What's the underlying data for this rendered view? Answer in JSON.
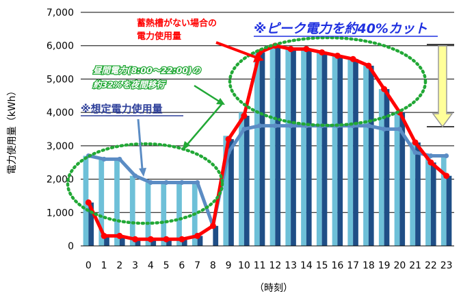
{
  "chart_data": {
    "type": "bar",
    "title": "",
    "xlabel": "（時刻）",
    "ylabel": "電力使用量（kWh）",
    "ylim": [
      0,
      7000
    ],
    "yticks": [
      0,
      1000,
      2000,
      3000,
      4000,
      5000,
      6000,
      7000
    ],
    "ytick_labels": [
      "0",
      "1,000",
      "2,000",
      "3,000",
      "4,000",
      "5,000",
      "6,000",
      "7,000"
    ],
    "categories": [
      "0",
      "1",
      "2",
      "3",
      "4",
      "5",
      "6",
      "7",
      "8",
      "9",
      "10",
      "11",
      "12",
      "13",
      "14",
      "15",
      "16",
      "17",
      "18",
      "19",
      "20",
      "21",
      "22",
      "23"
    ],
    "grid": "horizontal",
    "series": [
      {
        "kind": "bar-light",
        "color": "#6ec0d8",
        "values": [
          2700,
          2600,
          2600,
          2100,
          1900,
          1900,
          1900,
          1900,
          0,
          3300,
          4000,
          5800,
          6000,
          5900,
          5900,
          5800,
          5700,
          5600,
          5400,
          4700,
          4000,
          3100,
          2700,
          2700
        ]
      },
      {
        "kind": "bar-dark",
        "color": "#1f4e86",
        "values": [
          1300,
          300,
          300,
          200,
          200,
          200,
          200,
          300,
          600,
          3200,
          3900,
          5800,
          6000,
          5900,
          5900,
          5800,
          5700,
          5600,
          5400,
          4700,
          4000,
          3100,
          2500,
          2100
        ]
      },
      {
        "kind": "line",
        "color": "#ff0000",
        "values": [
          1300,
          300,
          300,
          200,
          200,
          200,
          200,
          300,
          600,
          3200,
          3900,
          5800,
          6000,
          5900,
          5900,
          5800,
          5700,
          5600,
          5400,
          4700,
          4000,
          3100,
          2500,
          2100
        ]
      },
      {
        "kind": "line",
        "color": "#5b8cc4",
        "values": [
          2700,
          2600,
          2600,
          2100,
          1900,
          1900,
          1900,
          1900,
          600,
          2800,
          3500,
          3600,
          3600,
          3600,
          3600,
          3600,
          3600,
          3600,
          3600,
          3500,
          3500,
          2800,
          2700,
          2700
        ]
      }
    ],
    "annotations": {
      "no_storage_line1": "蓄熱槽がない場合の",
      "no_storage_line2": "電力使用量",
      "peak_cut": "※ピーク電力を約40%カット",
      "shift_line1": "昼間電力(8:00～22:00)の",
      "shift_line2": "約32%を夜間移行",
      "assumed": "※想定電力使用量"
    },
    "colors": {
      "grid": "#000000",
      "ellipse": "#22a836",
      "arrow_fill": "#ffff99",
      "arrow_stroke": "#9a9a9a"
    }
  }
}
